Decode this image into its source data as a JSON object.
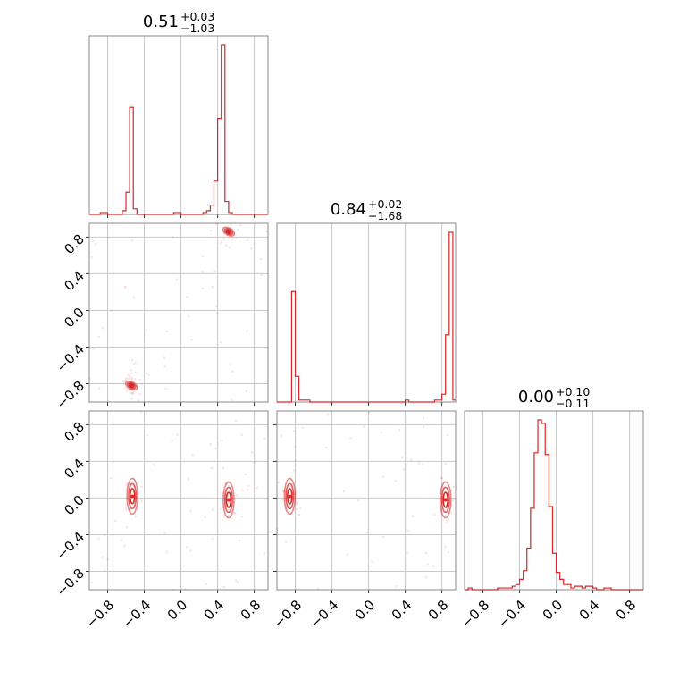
{
  "chart_data": {
    "type": "corner",
    "color": "#d62728",
    "ticks": [
      -0.8,
      -0.4,
      0.0,
      0.4,
      0.8
    ],
    "tick_labels": [
      "−0.8",
      "−0.4",
      "0.0",
      "0.4",
      "0.8"
    ],
    "range": [
      -1.0,
      0.95
    ],
    "grid": true,
    "parameters": [
      {
        "index": 0,
        "median": "0.51",
        "plus": "+0.03",
        "minus": "−1.03"
      },
      {
        "index": 1,
        "median": "0.84",
        "plus": "+0.02",
        "minus": "−1.68"
      },
      {
        "index": 2,
        "median": "0.00",
        "plus": "+0.10",
        "minus": "−0.11"
      }
    ],
    "histograms": [
      {
        "param": 0,
        "bin_start": -1.0,
        "bin_width": 0.04,
        "counts": [
          0,
          0,
          0,
          1,
          1,
          0,
          0,
          0,
          0,
          2,
          12,
          58,
          3,
          0,
          0,
          0,
          0,
          0,
          0,
          0,
          0,
          0,
          0,
          1,
          1,
          0,
          0,
          0,
          0,
          0,
          0,
          1,
          2,
          5,
          18,
          52,
          92,
          7,
          1,
          0,
          0,
          0,
          0,
          0,
          0,
          0,
          0,
          0,
          0
        ]
      },
      {
        "param": 1,
        "bin_start": -1.0,
        "bin_width": 0.04,
        "counts": [
          0,
          0,
          0,
          0,
          56,
          13,
          1,
          1,
          1,
          0,
          0,
          0,
          0,
          0,
          0,
          0,
          0,
          0,
          0,
          0,
          0,
          0,
          0,
          0,
          0,
          0,
          0,
          0,
          0,
          0,
          0,
          0,
          0,
          0,
          0,
          1,
          0,
          0,
          0,
          0,
          0,
          0,
          0,
          1,
          1,
          4,
          34,
          86,
          1
        ]
      },
      {
        "param": 2,
        "bin_start": -1.0,
        "bin_width": 0.04,
        "counts": [
          0,
          1,
          0,
          0,
          0,
          0,
          0,
          0,
          0,
          1,
          1,
          1,
          1,
          2,
          3,
          6,
          11,
          24,
          47,
          79,
          98,
          96,
          78,
          48,
          21,
          10,
          6,
          3,
          3,
          1,
          2,
          2,
          1,
          2,
          2,
          1,
          0,
          0,
          1,
          1,
          0,
          0,
          0,
          0,
          0,
          0,
          0,
          0,
          0
        ]
      }
    ],
    "density_2d": [
      {
        "x_param": 0,
        "y_param": 1,
        "modes": [
          [
            0.52,
            0.86
          ],
          [
            -0.54,
            -0.82
          ]
        ]
      },
      {
        "x_param": 0,
        "y_param": 2,
        "modes": [
          [
            -0.53,
            0.02
          ],
          [
            0.52,
            -0.02
          ]
        ]
      },
      {
        "x_param": 1,
        "y_param": 2,
        "modes": [
          [
            -0.86,
            0.02
          ],
          [
            0.84,
            -0.02
          ]
        ]
      }
    ]
  }
}
